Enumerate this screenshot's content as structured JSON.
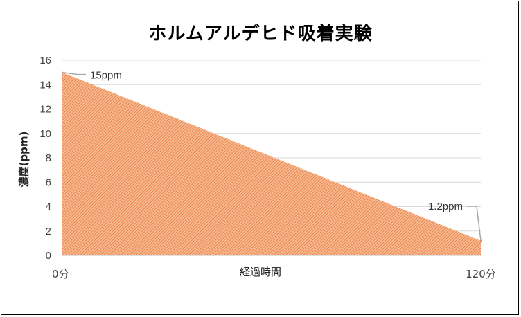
{
  "chart_data": {
    "type": "area",
    "title": "ホルムアルデヒド吸着実験",
    "xlabel": "経過時間",
    "ylabel": "濃度(ppm)",
    "x": [
      0,
      120
    ],
    "xtick_labels": [
      "0分",
      "120分"
    ],
    "series": [
      {
        "values": [
          15,
          1.2
        ]
      }
    ],
    "data_labels": [
      "15ppm",
      "1.2ppm"
    ],
    "ylim": [
      0,
      16
    ],
    "yticks": [
      0,
      2,
      4,
      6,
      8,
      10,
      12,
      14,
      16
    ],
    "grid": true,
    "fill_color": "#f4a372",
    "hatch_color": "#e06a2c",
    "gridline_color": "#d9d9d9"
  }
}
